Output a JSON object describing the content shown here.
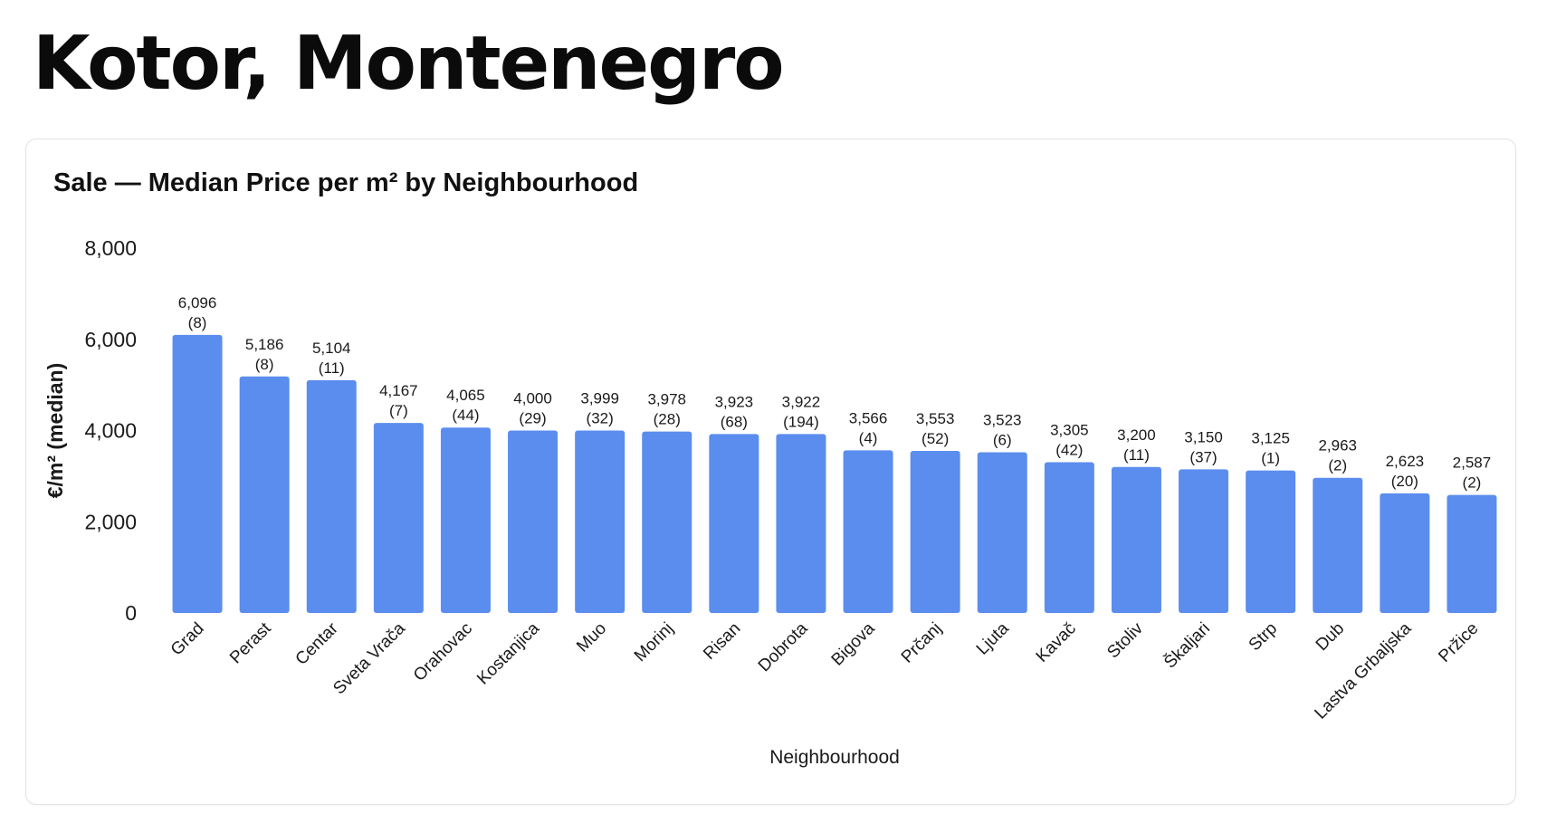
{
  "page": {
    "title": "Kotor, Montenegro"
  },
  "chart_data": {
    "type": "bar",
    "title": "Sale — Median Price per m² by Neighbourhood",
    "xlabel": "Neighbourhood",
    "ylabel": "€/m² (median)",
    "ylim": [
      0,
      8000
    ],
    "yticks": [
      0,
      2000,
      4000,
      6000,
      8000
    ],
    "ytick_labels": [
      "0",
      "2,000",
      "4,000",
      "6,000",
      "8,000"
    ],
    "grid": false,
    "bar_color": "#5b8def",
    "categories": [
      "Grad",
      "Perast",
      "Centar",
      "Sveta Vrača",
      "Orahovac",
      "Kostanjica",
      "Muo",
      "Morinj",
      "Risan",
      "Dobrota",
      "Bigova",
      "Prčanj",
      "Ljuta",
      "Kavač",
      "Stoliv",
      "Škaljari",
      "Strp",
      "Dub",
      "Lastva Grbaljska",
      "Pržice"
    ],
    "values": [
      6096,
      5186,
      5104,
      4167,
      4065,
      4000,
      3999,
      3978,
      3923,
      3922,
      3566,
      3553,
      3523,
      3305,
      3200,
      3150,
      3125,
      2963,
      2623,
      2587
    ],
    "value_labels": [
      "6,096",
      "5,186",
      "5,104",
      "4,167",
      "4,065",
      "4,000",
      "3,999",
      "3,978",
      "3,923",
      "3,922",
      "3,566",
      "3,553",
      "3,523",
      "3,305",
      "3,200",
      "3,150",
      "3,125",
      "2,963",
      "2,623",
      "2,587"
    ],
    "counts": [
      8,
      8,
      11,
      7,
      44,
      29,
      32,
      28,
      68,
      194,
      4,
      52,
      6,
      42,
      11,
      37,
      1,
      2,
      20,
      2
    ],
    "count_labels": [
      "(8)",
      "(8)",
      "(11)",
      "(7)",
      "(44)",
      "(29)",
      "(32)",
      "(28)",
      "(68)",
      "(194)",
      "(4)",
      "(52)",
      "(6)",
      "(42)",
      "(11)",
      "(37)",
      "(1)",
      "(2)",
      "(20)",
      "(2)"
    ]
  }
}
